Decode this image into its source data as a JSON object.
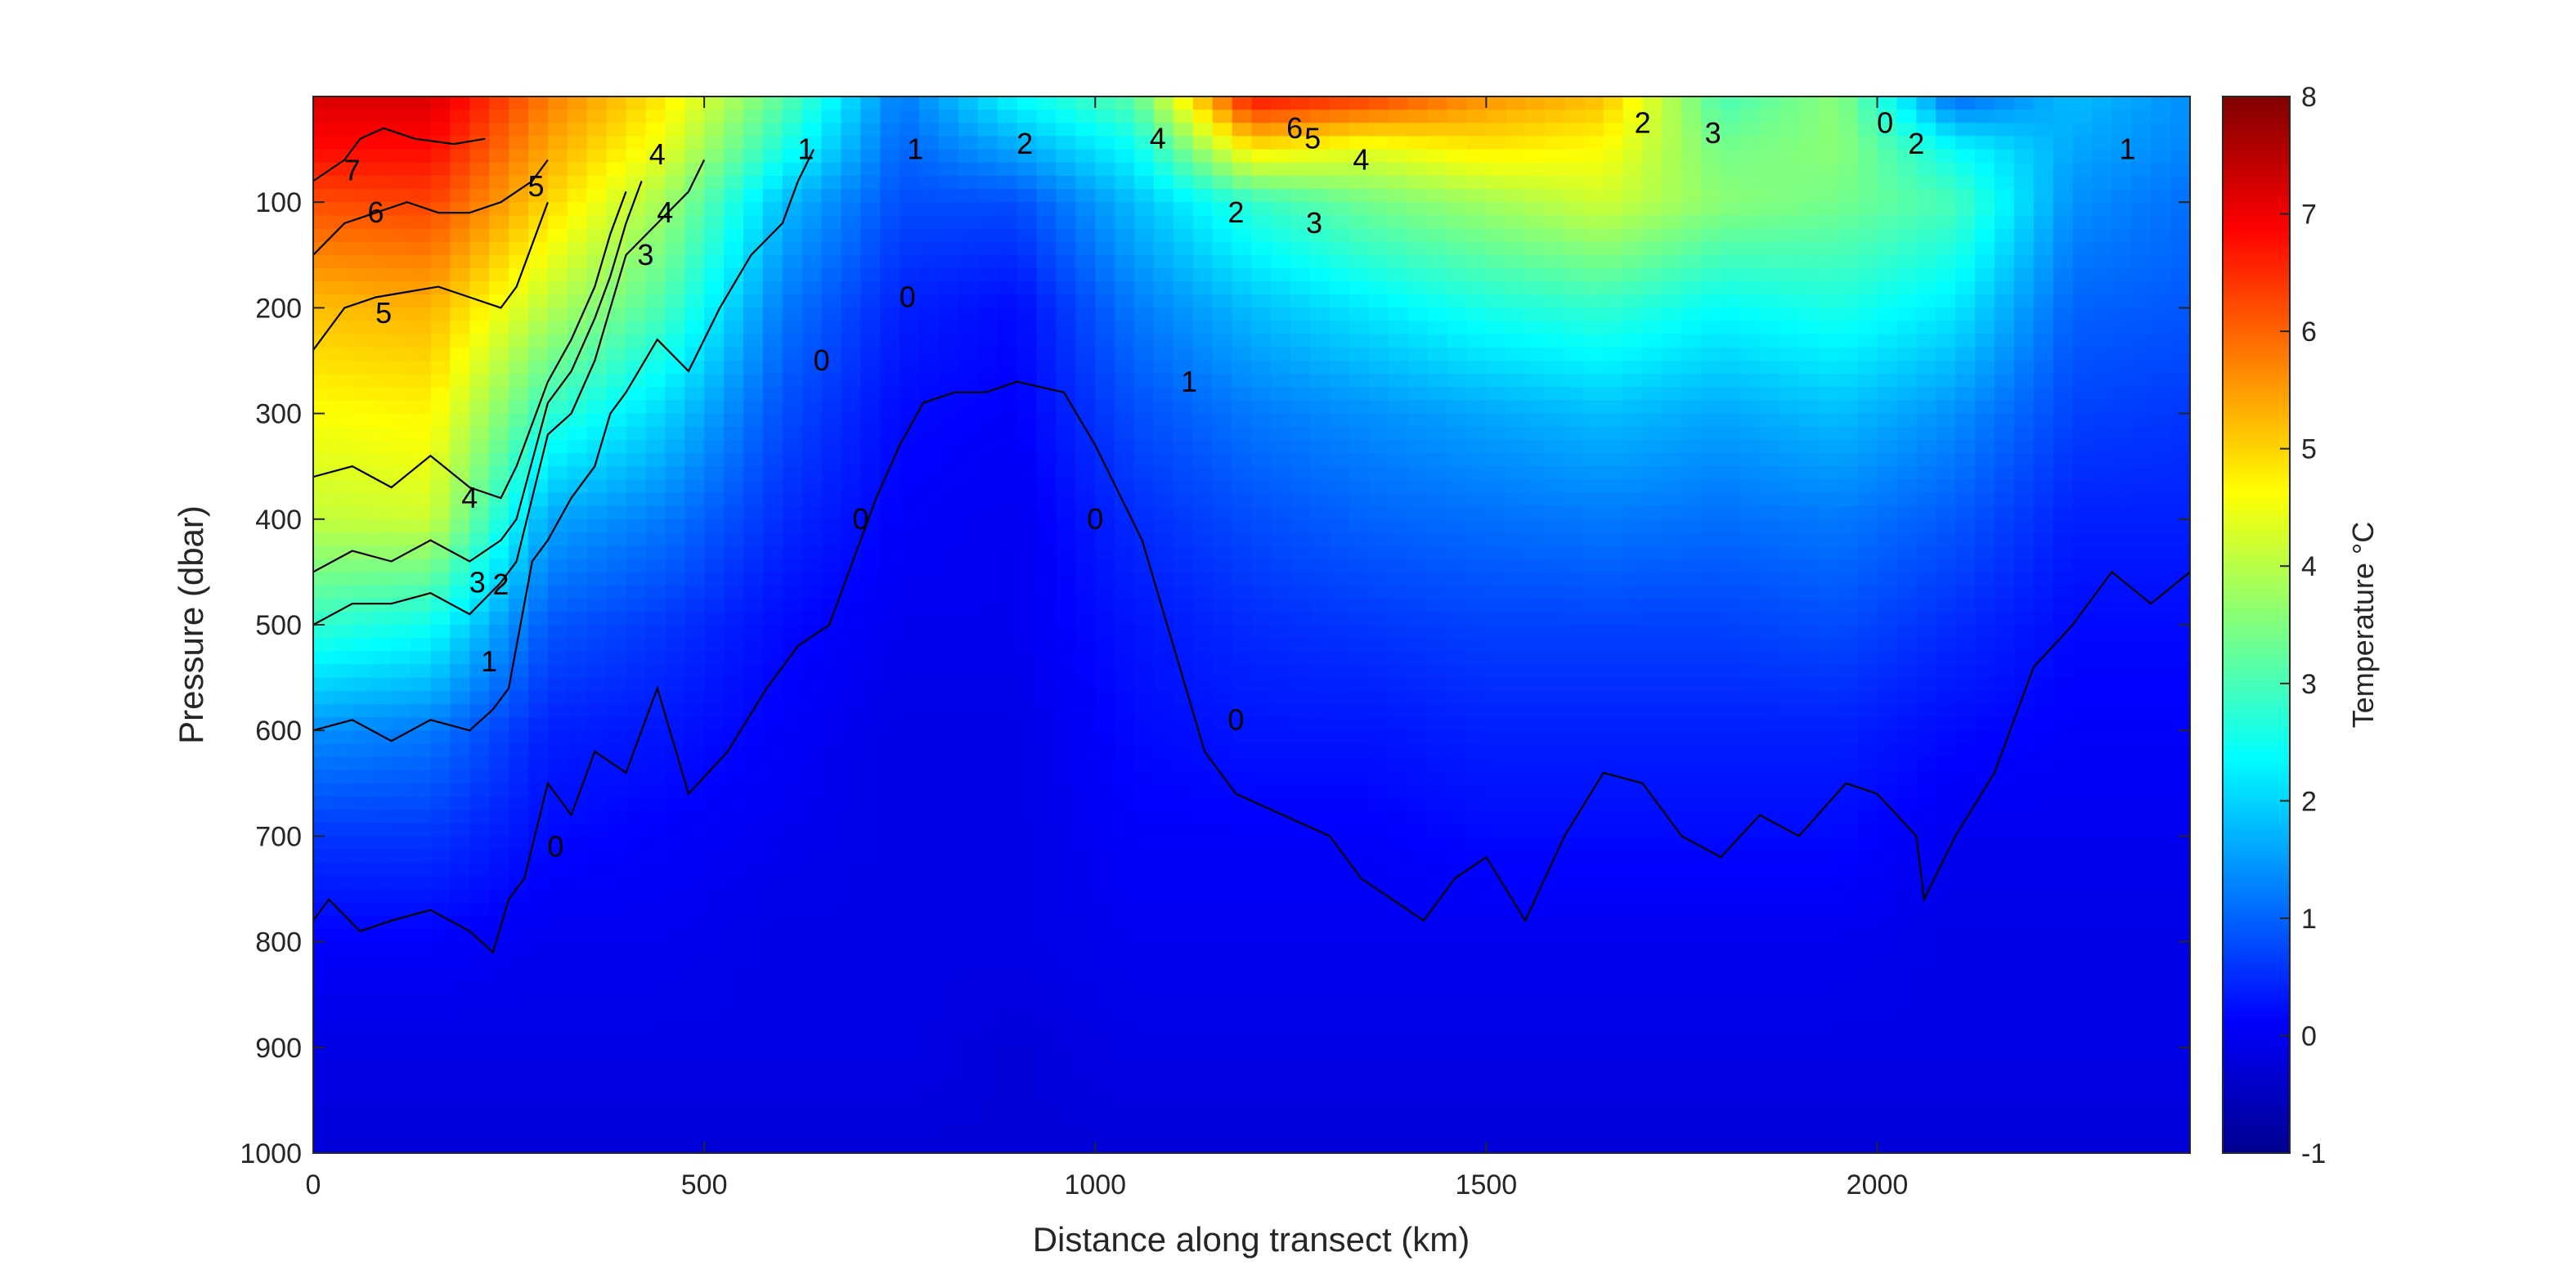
{
  "chart_data": {
    "type": "heatmap",
    "subtype": "filled-contour section",
    "xlabel": "Distance along transect (km)",
    "ylabel": "Pressure (dbar)",
    "colorbar_label": "Temperature °C",
    "xlim": [
      0,
      2400
    ],
    "ylim": [
      1000,
      0
    ],
    "y_direction": "reversed",
    "xticks": [
      0,
      500,
      1000,
      1500,
      2000
    ],
    "yticks": [
      100,
      200,
      300,
      400,
      500,
      600,
      700,
      800,
      900,
      1000
    ],
    "clim": [
      -1,
      8
    ],
    "colorbar_ticks": [
      -1,
      0,
      1,
      2,
      3,
      4,
      5,
      6,
      7,
      8
    ],
    "colormap": "jet",
    "contour_levels": [
      0,
      1,
      2,
      3,
      4,
      5,
      6,
      7
    ],
    "grid": false,
    "profiles": {
      "x": [
        0,
        150,
        300,
        450,
        600,
        750,
        900,
        1050,
        1200,
        1350,
        1500,
        1650,
        1800,
        1950,
        2100,
        2250,
        2400
      ],
      "pressure": [
        0,
        50,
        100,
        200,
        300,
        400,
        500,
        600,
        700,
        800,
        900,
        1000
      ],
      "temperature": [
        [
          7.2,
          6.8,
          6.2,
          5.2,
          4.6,
          4.1,
          2.8,
          1.4,
          0.6,
          0.1,
          -0.1,
          -0.2
        ],
        [
          7.2,
          6.8,
          6.3,
          5.3,
          4.7,
          4.2,
          2.5,
          1.2,
          0.6,
          0.1,
          -0.1,
          -0.2
        ],
        [
          5.8,
          5.4,
          5.0,
          4.0,
          2.8,
          1.6,
          0.9,
          0.4,
          0.2,
          0.0,
          -0.1,
          -0.2
        ],
        [
          4.8,
          4.4,
          3.8,
          3.0,
          2.0,
          1.2,
          0.6,
          0.3,
          0.1,
          0.0,
          -0.1,
          -0.2
        ],
        [
          3.2,
          2.6,
          1.8,
          1.2,
          0.8,
          0.5,
          0.2,
          0.1,
          0.0,
          -0.1,
          -0.1,
          -0.2
        ],
        [
          1.2,
          1.0,
          0.8,
          0.4,
          0.2,
          0.1,
          0.0,
          -0.1,
          -0.1,
          -0.1,
          -0.1,
          -0.2
        ],
        [
          2.4,
          1.6,
          0.8,
          0.2,
          0.1,
          0.0,
          0.0,
          -0.1,
          -0.1,
          -0.1,
          -0.2,
          -0.2
        ],
        [
          3.2,
          2.4,
          1.8,
          1.2,
          0.8,
          0.5,
          0.3,
          0.2,
          0.1,
          0.0,
          -0.1,
          -0.2
        ],
        [
          6.8,
          4.8,
          2.8,
          1.8,
          1.2,
          0.8,
          0.5,
          0.3,
          0.1,
          0.0,
          -0.1,
          -0.2
        ],
        [
          6.4,
          4.4,
          3.4,
          2.2,
          1.4,
          1.0,
          0.6,
          0.3,
          0.1,
          0.0,
          -0.1,
          -0.2
        ],
        [
          5.6,
          4.8,
          3.8,
          2.6,
          1.6,
          1.1,
          0.7,
          0.4,
          0.2,
          0.0,
          -0.1,
          -0.2
        ],
        [
          5.2,
          4.6,
          4.2,
          2.8,
          1.8,
          1.2,
          0.7,
          0.4,
          0.2,
          0.0,
          -0.1,
          -0.2
        ],
        [
          3.0,
          3.4,
          3.6,
          2.4,
          1.6,
          1.1,
          0.7,
          0.4,
          0.2,
          0.0,
          -0.1,
          -0.2
        ],
        [
          3.6,
          3.6,
          3.4,
          2.6,
          1.8,
          1.2,
          0.8,
          0.4,
          0.2,
          0.0,
          -0.1,
          -0.2
        ],
        [
          1.0,
          2.4,
          3.0,
          2.2,
          1.4,
          0.9,
          0.5,
          0.2,
          0.0,
          -0.1,
          -0.1,
          -0.2
        ],
        [
          1.8,
          1.6,
          1.4,
          1.0,
          0.7,
          0.4,
          0.2,
          0.1,
          0.0,
          -0.1,
          -0.1,
          -0.2
        ],
        [
          1.4,
          1.3,
          1.1,
          0.9,
          0.6,
          0.4,
          0.2,
          0.1,
          0.0,
          -0.1,
          -0.1,
          -0.2
        ]
      ]
    },
    "contour_lines": [
      {
        "level": 0,
        "x": [
          0,
          20,
          60,
          100,
          150,
          200,
          230,
          250,
          270,
          300,
          330,
          360,
          400,
          440,
          480,
          530,
          580,
          620,
          660,
          700,
          720,
          750,
          780,
          820,
          860,
          900,
          960,
          1000,
          1060,
          1100,
          1140,
          1180,
          1240,
          1300,
          1340,
          1380,
          1420,
          1460,
          1500,
          1550,
          1600,
          1650,
          1700,
          1750,
          1800,
          1850,
          1900,
          1960,
          2000,
          2050,
          2060,
          2100,
          2150,
          2200,
          2250,
          2300,
          2350,
          2400
        ],
        "y": [
          780,
          760,
          790,
          780,
          770,
          790,
          810,
          760,
          740,
          650,
          680,
          620,
          640,
          560,
          660,
          620,
          560,
          520,
          500,
          420,
          380,
          330,
          290,
          280,
          280,
          270,
          280,
          330,
          420,
          520,
          620,
          660,
          680,
          700,
          740,
          760,
          780,
          740,
          720,
          780,
          700,
          640,
          650,
          700,
          720,
          680,
          700,
          650,
          660,
          700,
          760,
          700,
          640,
          540,
          500,
          450,
          480,
          450
        ]
      },
      {
        "level": 1,
        "x": [
          0,
          50,
          100,
          150,
          200,
          230,
          250,
          280,
          300,
          330,
          360,
          380,
          400,
          440,
          480,
          520,
          560,
          600,
          620,
          640
        ],
        "y": [
          600,
          590,
          610,
          590,
          600,
          580,
          560,
          440,
          420,
          380,
          350,
          300,
          280,
          230,
          260,
          200,
          150,
          120,
          80,
          50
        ]
      },
      {
        "level": 2,
        "x": [
          0,
          50,
          100,
          150,
          200,
          240,
          260,
          300,
          330,
          360,
          380,
          400,
          440,
          480,
          500
        ],
        "y": [
          500,
          480,
          480,
          470,
          490,
          460,
          440,
          320,
          300,
          250,
          200,
          150,
          120,
          90,
          60
        ]
      },
      {
        "level": 3,
        "x": [
          0,
          50,
          100,
          150,
          200,
          240,
          260,
          300,
          330,
          360,
          380,
          400,
          420
        ],
        "y": [
          450,
          430,
          440,
          420,
          440,
          420,
          400,
          290,
          260,
          210,
          170,
          120,
          80
        ]
      },
      {
        "level": 4,
        "x": [
          0,
          50,
          100,
          150,
          200,
          240,
          260,
          300,
          330,
          360,
          380,
          400
        ],
        "y": [
          360,
          350,
          370,
          340,
          370,
          380,
          350,
          270,
          230,
          180,
          130,
          90
        ]
      },
      {
        "level": 5,
        "x": [
          0,
          40,
          80,
          120,
          160,
          200,
          240,
          260,
          280,
          300
        ],
        "y": [
          240,
          200,
          190,
          185,
          180,
          190,
          200,
          180,
          140,
          100
        ]
      },
      {
        "level": 6,
        "x": [
          0,
          40,
          80,
          120,
          160,
          200,
          240,
          280,
          300
        ],
        "y": [
          150,
          120,
          110,
          100,
          110,
          110,
          100,
          80,
          60
        ]
      },
      {
        "level": 7,
        "x": [
          0,
          40,
          60,
          90,
          130,
          180,
          220
        ],
        "y": [
          80,
          60,
          40,
          30,
          40,
          45,
          40
        ]
      }
    ],
    "contour_labels": [
      {
        "text": "7",
        "x": 50,
        "y": 70
      },
      {
        "text": "6",
        "x": 80,
        "y": 110
      },
      {
        "text": "5",
        "x": 90,
        "y": 205
      },
      {
        "text": "4",
        "x": 200,
        "y": 380
      },
      {
        "text": "3",
        "x": 210,
        "y": 460
      },
      {
        "text": "2",
        "x": 240,
        "y": 462
      },
      {
        "text": "1",
        "x": 225,
        "y": 535
      },
      {
        "text": "5",
        "x": 285,
        "y": 85
      },
      {
        "text": "4",
        "x": 450,
        "y": 110
      },
      {
        "text": "3",
        "x": 425,
        "y": 150
      },
      {
        "text": "4",
        "x": 440,
        "y": 55
      },
      {
        "text": "0",
        "x": 310,
        "y": 710
      },
      {
        "text": "0",
        "x": 650,
        "y": 250
      },
      {
        "text": "0",
        "x": 700,
        "y": 400
      },
      {
        "text": "0",
        "x": 760,
        "y": 190
      },
      {
        "text": "1",
        "x": 770,
        "y": 50
      },
      {
        "text": "2",
        "x": 910,
        "y": 45
      },
      {
        "text": "0",
        "x": 1000,
        "y": 400
      },
      {
        "text": "1",
        "x": 1120,
        "y": 270
      },
      {
        "text": "4",
        "x": 1080,
        "y": 40
      },
      {
        "text": "2",
        "x": 1180,
        "y": 110
      },
      {
        "text": "3",
        "x": 1280,
        "y": 120
      },
      {
        "text": "6",
        "x": 1255,
        "y": 30
      },
      {
        "text": "5",
        "x": 1278,
        "y": 40
      },
      {
        "text": "4",
        "x": 1340,
        "y": 60
      },
      {
        "text": "0",
        "x": 1180,
        "y": 590
      },
      {
        "text": "2",
        "x": 1700,
        "y": 25
      },
      {
        "text": "3",
        "x": 1790,
        "y": 35
      },
      {
        "text": "0",
        "x": 2010,
        "y": 25
      },
      {
        "text": "2",
        "x": 2050,
        "y": 45
      },
      {
        "text": "1",
        "x": 2320,
        "y": 50
      },
      {
        "text": "1",
        "x": 630,
        "y": 50
      }
    ]
  }
}
